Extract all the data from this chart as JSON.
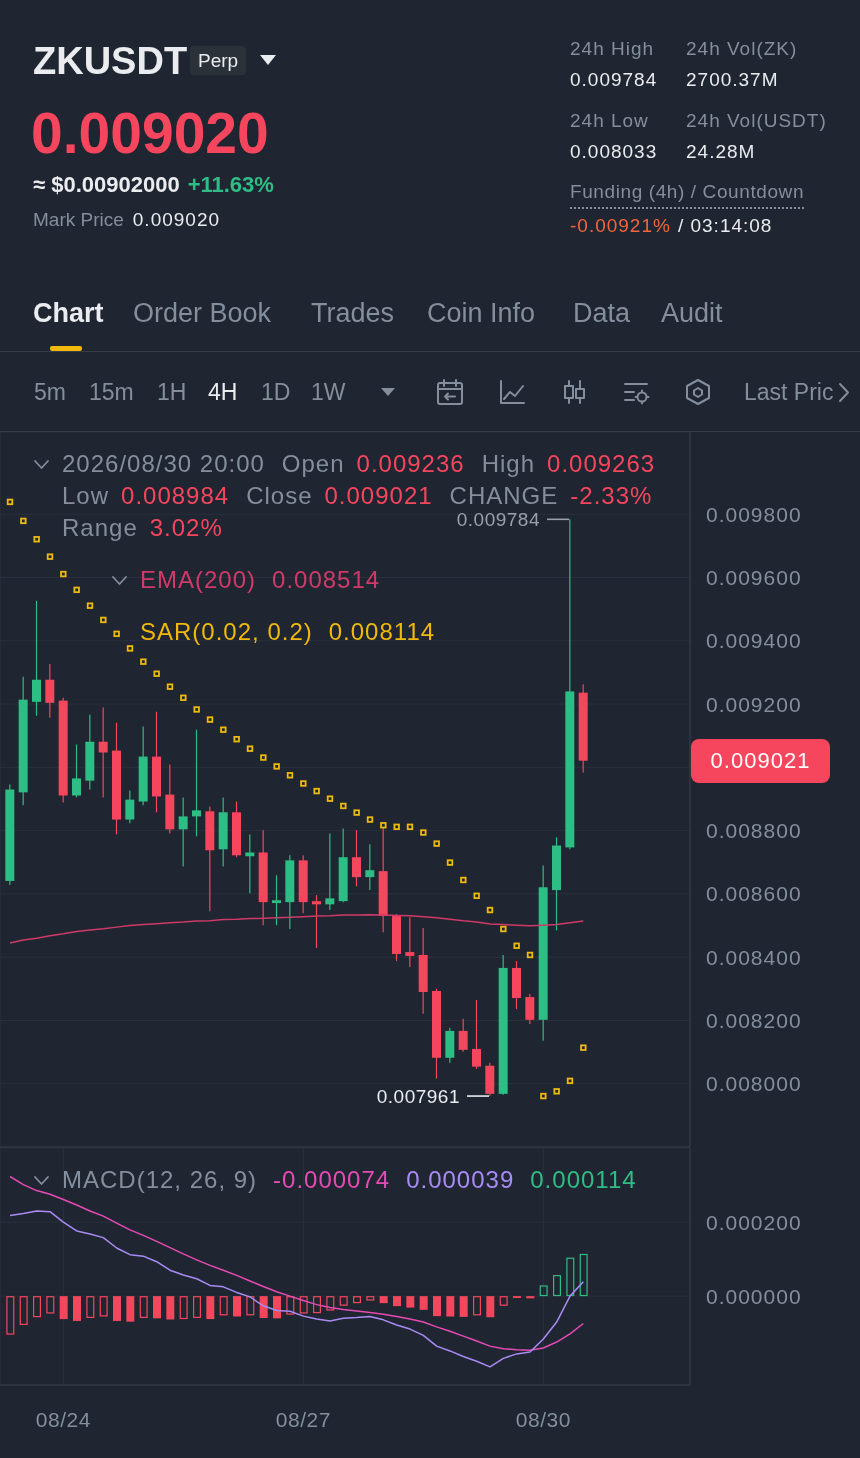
{
  "chart_data": [
    {
      "type": "other",
      "annotations": [
        "ZKUSDT",
        "Perp",
        "0.009020",
        "≈ $0.00902000",
        "+11.63%",
        "Mark Price",
        "0.009020",
        "24h High",
        "0.009784",
        "24h Vol(ZK)",
        "2700.37M",
        "24h Low",
        "0.008033",
        "24h Vol(USDT)",
        "24.28M",
        "Funding (4h) / Countdown",
        "-0.00921%",
        "/ 03:14:08",
        "Chart",
        "Order Book",
        "Trades",
        "Coin Info",
        "Data",
        "Audit",
        "5m",
        "15m",
        "1H",
        "4H",
        "1D",
        "1W",
        "Last Pric"
      ]
    },
    {
      "type": "candlestick",
      "x": [
        "2026-08-23T16:00",
        "2026-08-23T20:00",
        "2026-08-24T00:00",
        "2026-08-24T04:00",
        "2026-08-24T08:00",
        "2026-08-24T12:00",
        "2026-08-24T16:00",
        "2026-08-24T20:00",
        "2026-08-25T00:00",
        "2026-08-25T04:00",
        "2026-08-25T08:00",
        "2026-08-25T12:00",
        "2026-08-25T16:00",
        "2026-08-25T20:00",
        "2026-08-26T00:00",
        "2026-08-26T04:00",
        "2026-08-26T08:00",
        "2026-08-26T12:00",
        "2026-08-26T16:00",
        "2026-08-26T20:00",
        "2026-08-27T00:00",
        "2026-08-27T04:00",
        "2026-08-27T08:00",
        "2026-08-27T12:00",
        "2026-08-27T16:00",
        "2026-08-27T20:00",
        "2026-08-28T00:00",
        "2026-08-28T04:00",
        "2026-08-28T08:00",
        "2026-08-28T12:00",
        "2026-08-28T16:00",
        "2026-08-28T20:00",
        "2026-08-29T00:00",
        "2026-08-29T04:00",
        "2026-08-29T08:00",
        "2026-08-29T12:00",
        "2026-08-29T16:00",
        "2026-08-29T20:00",
        "2026-08-30T00:00",
        "2026-08-30T04:00",
        "2026-08-30T08:00",
        "2026-08-30T12:00",
        "2026-08-30T16:00",
        "2026-08-30T20:00"
      ],
      "xlim": [
        "2026-08-23T13:00",
        "2026-09-01T04:00"
      ],
      "xticks": [
        {
          "value": "2026-08-24T08:00",
          "label": null
        },
        {
          "value": "2026-08-27T08:00",
          "label": null
        },
        {
          "value": "2026-08-30T08:00",
          "label": null
        }
      ],
      "ohlc": [
        [
          0.008641,
          0.008946,
          0.008628,
          0.00893
        ],
        [
          0.008921,
          0.009286,
          0.00888,
          0.009214
        ],
        [
          0.009207,
          0.009526,
          0.009163,
          0.009277
        ],
        [
          0.009277,
          0.009327,
          0.009157,
          0.009204
        ],
        [
          0.009211,
          0.00922,
          0.008889,
          0.008911
        ],
        [
          0.008911,
          0.009072,
          0.008905,
          0.008965
        ],
        [
          0.008958,
          0.009166,
          0.00893,
          0.009081
        ],
        [
          0.009081,
          0.009189,
          0.008905,
          0.009047
        ],
        [
          0.009053,
          0.009141,
          0.008788,
          0.008835
        ],
        [
          0.008835,
          0.008927,
          0.008823,
          0.008898
        ],
        [
          0.008892,
          0.009129,
          0.00888,
          0.009034
        ],
        [
          0.009034,
          0.009176,
          0.008858,
          0.008908
        ],
        [
          0.008914,
          0.009009,
          0.008791,
          0.008804
        ],
        [
          0.008804,
          0.008905,
          0.008687,
          0.008845
        ],
        [
          0.008845,
          0.009119,
          0.008782,
          0.008864
        ],
        [
          0.008861,
          0.008876,
          0.008545,
          0.008738
        ],
        [
          0.008741,
          0.008905,
          0.008687,
          0.008858
        ],
        [
          0.008858,
          0.008892,
          0.008716,
          0.008722
        ],
        [
          0.008719,
          0.008788,
          0.008602,
          0.008731
        ],
        [
          0.008731,
          0.008801,
          0.008501,
          0.008574
        ],
        [
          0.008571,
          0.008659,
          0.008501,
          0.00858
        ],
        [
          0.008574,
          0.008722,
          0.008489,
          0.008706
        ],
        [
          0.008706,
          0.008722,
          0.008539,
          0.008574
        ],
        [
          0.008577,
          0.008596,
          0.008429,
          0.008567
        ],
        [
          0.008567,
          0.008791,
          0.008549,
          0.008586
        ],
        [
          0.008577,
          0.008807,
          0.008574,
          0.008716
        ],
        [
          0.008716,
          0.008801,
          0.008624,
          0.008653
        ],
        [
          0.008653,
          0.008757,
          0.008612,
          0.008675
        ],
        [
          0.008672,
          0.008813,
          0.008479,
          0.00853
        ],
        [
          0.00853,
          0.008536,
          0.008388,
          0.00841
        ],
        [
          0.008416,
          0.008526,
          0.008369,
          0.008404
        ],
        [
          0.008407,
          0.008492,
          0.008221,
          0.00829
        ],
        [
          0.008293,
          0.0083,
          0.008016,
          0.008082
        ],
        [
          0.008082,
          0.008177,
          0.008066,
          0.008167
        ],
        [
          0.008167,
          0.008205,
          0.008101,
          0.008107
        ],
        [
          0.00811,
          0.008265,
          0.008047,
          0.008054
        ],
        [
          0.008057,
          0.008066,
          0.007961,
          0.007968
        ],
        [
          0.007968,
          0.008407,
          0.007965,
          0.008366
        ],
        [
          0.008366,
          0.008388,
          0.008236,
          0.008271
        ],
        [
          0.008274,
          0.008284,
          0.008189,
          0.008202
        ],
        [
          0.008202,
          0.00869,
          0.008136,
          0.008621
        ],
        [
          0.008612,
          0.008779,
          0.008485,
          0.008753
        ],
        [
          0.008747,
          0.009784,
          0.008741,
          0.00924
        ],
        [
          0.009236,
          0.009263,
          0.008984,
          0.009021
        ]
      ],
      "colors": [
        "#2ebd85",
        "#2ebd85",
        "#2ebd85",
        "#f6465d",
        "#f6465d",
        "#2ebd85",
        "#2ebd85",
        "#f6465d",
        "#f6465d",
        "#2ebd85",
        "#2ebd85",
        "#f6465d",
        "#f6465d",
        "#2ebd85",
        "#2ebd85",
        "#f6465d",
        "#2ebd85",
        "#f6465d",
        "#2ebd85",
        "#f6465d",
        "#2ebd85",
        "#2ebd85",
        "#f6465d",
        "#f6465d",
        "#2ebd85",
        "#2ebd85",
        "#f6465d",
        "#2ebd85",
        "#f6465d",
        "#f6465d",
        "#f6465d",
        "#f6465d",
        "#f6465d",
        "#2ebd85",
        "#f6465d",
        "#f6465d",
        "#f6465d",
        "#2ebd85",
        "#f6465d",
        "#f6465d",
        "#2ebd85",
        "#2ebd85",
        "#2ebd85",
        "#f6465d"
      ],
      "series": [
        {
          "name": "EMA(200)",
          "type": "line",
          "color": "#d03a68",
          "values": [
            0.008445,
            0.008454,
            0.00846,
            0.008468,
            0.008474,
            0.008481,
            0.008486,
            0.00849,
            0.008495,
            0.0085,
            0.008503,
            0.008506,
            0.008509,
            0.008511,
            0.008514,
            0.008515,
            0.008519,
            0.00852,
            0.008522,
            0.008523,
            0.008525,
            0.008526,
            0.008528,
            0.00853,
            0.008531,
            0.008533,
            0.008533,
            0.008534,
            0.008533,
            0.008532,
            0.008531,
            0.008528,
            0.008525,
            0.00852,
            0.008515,
            0.008511,
            0.008505,
            0.008503,
            0.008501,
            0.008499,
            0.008501,
            0.008503,
            0.008509,
            0.008514
          ]
        },
        {
          "name": "SAR(0.02, 0.2)",
          "type": "scatter",
          "color": "#f0b90b",
          "marker": "square",
          "values": [
            0.009839,
            0.009779,
            0.009721,
            0.009666,
            0.009611,
            0.009561,
            0.009511,
            0.009466,
            0.009422,
            0.009376,
            0.009334,
            0.009296,
            0.009255,
            0.00922,
            0.009183,
            0.009151,
            0.009119,
            0.009089,
            0.009059,
            0.009031,
            0.009003,
            0.008975,
            0.008949,
            0.008925,
            0.008901,
            0.008878,
            0.008857,
            0.008835,
            0.008817,
            0.008812,
            0.008812,
            0.008794,
            0.008759,
            0.008699,
            0.008644,
            0.008594,
            0.008549,
            0.008489,
            0.008436,
            0.008407,
            0.007961,
            0.007976,
            0.008009,
            0.008114
          ]
        }
      ],
      "ylim": [
        0.0078,
        0.01006
      ],
      "yticks": [
        {
          "value": 0.008,
          "label": "0.008000"
        },
        {
          "value": 0.0082,
          "label": "0.008200"
        },
        {
          "value": 0.0084,
          "label": "0.008400"
        },
        {
          "value": 0.0086,
          "label": "0.008600"
        },
        {
          "value": 0.0088,
          "label": "0.008800"
        },
        {
          "value": 0.009,
          "label": null
        },
        {
          "value": 0.0092,
          "label": "0.009200"
        },
        {
          "value": 0.0094,
          "label": "0.009400"
        },
        {
          "value": 0.0096,
          "label": "0.009600"
        },
        {
          "value": 0.0098,
          "label": "0.009800"
        }
      ],
      "grid": true,
      "legend": "top left",
      "tick_labels": "y",
      "annotations": [
        "2026/08/30 20:00",
        "Open",
        "0.009236",
        "High",
        "0.009263",
        "Low",
        "0.008984",
        "Close",
        "0.009021",
        "CHANGE",
        "-2.33%",
        "Range",
        "3.02%",
        "0.008514",
        "0.008114",
        "0.009021",
        {
          "text": "0.009784",
          "x": "2026-08-30T16:00",
          "y": 0.009784
        },
        {
          "text": "0.007961",
          "x": "2026-08-29T16:00",
          "y": 0.007961
        }
      ]
    },
    {
      "type": "bar",
      "title": "MACD(12, 26, 9)",
      "x": [
        "2026-08-23T16:00",
        "2026-08-23T20:00",
        "2026-08-24T00:00",
        "2026-08-24T04:00",
        "2026-08-24T08:00",
        "2026-08-24T12:00",
        "2026-08-24T16:00",
        "2026-08-24T20:00",
        "2026-08-25T00:00",
        "2026-08-25T04:00",
        "2026-08-25T08:00",
        "2026-08-25T12:00",
        "2026-08-25T16:00",
        "2026-08-25T20:00",
        "2026-08-26T00:00",
        "2026-08-26T04:00",
        "2026-08-26T08:00",
        "2026-08-26T12:00",
        "2026-08-26T16:00",
        "2026-08-26T20:00",
        "2026-08-27T00:00",
        "2026-08-27T04:00",
        "2026-08-27T08:00",
        "2026-08-27T12:00",
        "2026-08-27T16:00",
        "2026-08-27T20:00",
        "2026-08-28T00:00",
        "2026-08-28T04:00",
        "2026-08-28T08:00",
        "2026-08-28T12:00",
        "2026-08-28T16:00",
        "2026-08-28T20:00",
        "2026-08-29T00:00",
        "2026-08-29T04:00",
        "2026-08-29T08:00",
        "2026-08-29T12:00",
        "2026-08-29T16:00",
        "2026-08-29T20:00",
        "2026-08-30T00:00",
        "2026-08-30T04:00",
        "2026-08-30T08:00",
        "2026-08-30T12:00",
        "2026-08-30T16:00",
        "2026-08-30T20:00"
      ],
      "xlim": [
        "2026-08-23T13:00",
        "2026-09-01T04:00"
      ],
      "xticks": [
        {
          "value": "2026-08-24T08:00",
          "label": "08/24"
        },
        {
          "value": "2026-08-27T08:00",
          "label": "08/27"
        },
        {
          "value": "2026-08-30T08:00",
          "label": "08/30"
        }
      ],
      "series": [
        {
          "type": "line",
          "color": "#e64bb4",
          "values": [
            0.000323,
            0.000301,
            0.000285,
            0.000275,
            0.000261,
            0.000246,
            0.00023,
            0.000216,
            0.000197,
            0.000179,
            0.000164,
            0.000148,
            0.000131,
            0.000114,
            9.8e-05,
            8.3e-05,
            7e-05,
            5.6e-05,
            4.1e-05,
            2.6e-05,
            1.2e-05,
            0,
            -1.2e-05,
            -2.3e-05,
            -3.1e-05,
            -3.6e-05,
            -4e-05,
            -4.4e-05,
            -4.9e-05,
            -5.5e-05,
            -6.2e-05,
            -7e-05,
            -8.3e-05,
            -9.5e-05,
            -0.000108,
            -0.000121,
            -0.000135,
            -0.000142,
            -0.000145,
            -0.000146,
            -0.00014,
            -0.000124,
            -0.000102,
            -7.4e-05
          ]
        },
        {
          "type": "line",
          "color": "#a88bf5",
          "values": [
            0.000218,
            0.000223,
            0.00023,
            0.000228,
            0.0002,
            0.000176,
            0.000168,
            0.000158,
            0.00013,
            0.000112,
            0.000108,
            9.3e-05,
            7e-05,
            5.7e-05,
            4.7e-05,
            2.9e-05,
            2.5e-05,
            1e-05,
            -2e-06,
            -2.6e-05,
            -3.9e-05,
            -4.1e-05,
            -5.4e-05,
            -6.2e-05,
            -6.7e-05,
            -6e-05,
            -5.8e-05,
            -5.5e-05,
            -6.4e-05,
            -7.8e-05,
            -8.9e-05,
            -0.000106,
            -0.000135,
            -0.000148,
            -0.000163,
            -0.000176,
            -0.000191,
            -0.000168,
            -0.000156,
            -0.000151,
            -0.000116,
            -7e-05,
            0,
            3.9e-05
          ]
        },
        {
          "colors": [
            "#f6465d",
            "#f6465d",
            "#f6465d",
            "#f6465d",
            "#f6465d",
            "#f6465d",
            "#f6465d",
            "#f6465d",
            "#f6465d",
            "#f6465d",
            "#f6465d",
            "#f6465d",
            "#f6465d",
            "#f6465d",
            "#f6465d",
            "#f6465d",
            "#f6465d",
            "#f6465d",
            "#f6465d",
            "#f6465d",
            "#f6465d",
            "#f6465d",
            "#f6465d",
            "#f6465d",
            "#f6465d",
            "#f6465d",
            "#f6465d",
            "#f6465d",
            "#f6465d",
            "#f6465d",
            "#f6465d",
            "#f6465d",
            "#f6465d",
            "#f6465d",
            "#f6465d",
            "#f6465d",
            "#f6465d",
            "#f6465d",
            "#f6465d",
            "#f6465d",
            "#2ebd85",
            "#2ebd85",
            "#2ebd85",
            "#2ebd85"
          ],
          "values": [
            -0.000104,
            -7.8e-05,
            -5.7e-05,
            -4.7e-05,
            -6.2e-05,
            -6.7e-05,
            -5.9e-05,
            -5.5e-05,
            -6.7e-05,
            -6.9e-05,
            -5.9e-05,
            -6e-05,
            -6.3e-05,
            -6.2e-05,
            -5.9e-05,
            -6.2e-05,
            -5.2e-05,
            -5.5e-05,
            -5.2e-05,
            -5.9e-05,
            -6e-05,
            -5e-05,
            -4.7e-05,
            -4.6e-05,
            -3.9e-05,
            -2.6e-05,
            -1.9e-05,
            -1.2e-05,
            -1.9e-05,
            -2.7e-05,
            -3.1e-05,
            -3.7e-05,
            -5.4e-05,
            -5.5e-05,
            -5.6e-05,
            -5.2e-05,
            -5.7e-05,
            -2.6e-05,
            -5e-06,
            -6e-06,
            2.9e-05,
            5.7e-05,
            0.000104,
            0.000114
          ]
        }
      ],
      "ylim": [
        -0.00024,
        0.0004
      ],
      "yticks": [
        {
          "value": 0,
          "label": "0.000000"
        },
        {
          "value": 0.0002,
          "label": "0.000200"
        }
      ],
      "grid": true,
      "annotations": [
        "-0.000074",
        "0.000039",
        "0.000114"
      ]
    }
  ]
}
